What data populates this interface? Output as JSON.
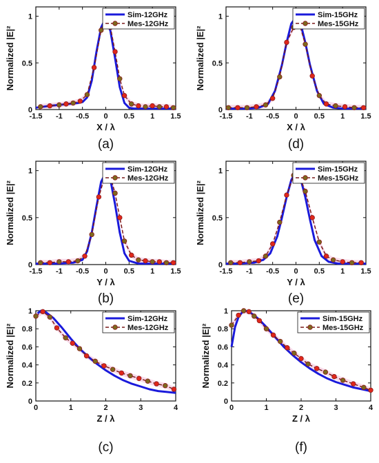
{
  "chart_data": [
    {
      "id": "a",
      "type": "line",
      "caption": "(a)",
      "xlabel": "X / λ",
      "ylabel": "Normalized |E|²",
      "xlim": [
        -1.5,
        1.5
      ],
      "ylim": [
        0,
        1.1
      ],
      "xticks": [
        "-1.5",
        "-1",
        "-0.5",
        "0",
        "0.5",
        "1",
        "1.5"
      ],
      "yticks": [
        "0",
        "0.5",
        "1"
      ],
      "legend_position": "top-right",
      "series": [
        {
          "name": "Sim-12GHz",
          "style": "solid",
          "color": "#1a1adb",
          "x": [
            -1.5,
            -1.2,
            -1.0,
            -0.8,
            -0.6,
            -0.5,
            -0.4,
            -0.3,
            -0.2,
            -0.1,
            0.0,
            0.1,
            0.2,
            0.3,
            0.4,
            0.5,
            0.6,
            0.8,
            1.0,
            1.2,
            1.5
          ],
          "y": [
            0.02,
            0.04,
            0.05,
            0.06,
            0.07,
            0.08,
            0.13,
            0.31,
            0.62,
            0.88,
            0.98,
            0.84,
            0.55,
            0.24,
            0.07,
            0.02,
            0.01,
            0.01,
            0.01,
            0.01,
            0.01
          ]
        },
        {
          "name": "Mes-12GHz",
          "style": "dashed",
          "color": "#7a1a1a",
          "marker": "circle",
          "x": [
            -1.4,
            -1.2,
            -1.0,
            -0.85,
            -0.7,
            -0.55,
            -0.4,
            -0.25,
            -0.1,
            0.0,
            0.1,
            0.2,
            0.3,
            0.4,
            0.55,
            0.7,
            0.85,
            1.0,
            1.15,
            1.3,
            1.45
          ],
          "y": [
            0.03,
            0.04,
            0.05,
            0.06,
            0.07,
            0.09,
            0.16,
            0.45,
            0.85,
            0.98,
            0.88,
            0.62,
            0.33,
            0.15,
            0.06,
            0.04,
            0.03,
            0.04,
            0.03,
            0.03,
            0.02
          ]
        }
      ]
    },
    {
      "id": "b",
      "type": "line",
      "caption": "(b)",
      "xlabel": "Y / λ",
      "ylabel": "Normalized |E|²",
      "xlim": [
        -1.5,
        1.5
      ],
      "ylim": [
        0,
        1.1
      ],
      "xticks": [
        "-1.5",
        "-1",
        "-0.5",
        "0",
        "0.5",
        "1",
        "1.5"
      ],
      "yticks": [
        "0",
        "0.5",
        "1"
      ],
      "legend_position": "top-right",
      "series": [
        {
          "name": "Sim-12GHz",
          "style": "solid",
          "color": "#1a1adb",
          "x": [
            -1.5,
            -1.0,
            -0.7,
            -0.5,
            -0.4,
            -0.3,
            -0.2,
            -0.1,
            0.0,
            0.1,
            0.2,
            0.3,
            0.4,
            0.5,
            0.7,
            1.0,
            1.5
          ],
          "y": [
            0.01,
            0.01,
            0.02,
            0.05,
            0.14,
            0.34,
            0.62,
            0.88,
            0.98,
            0.9,
            0.64,
            0.34,
            0.12,
            0.04,
            0.01,
            0.01,
            0.01
          ]
        },
        {
          "name": "Mes-12GHz",
          "style": "dashed",
          "color": "#7a1a1a",
          "marker": "circle",
          "x": [
            -1.4,
            -1.2,
            -1.0,
            -0.8,
            -0.6,
            -0.45,
            -0.3,
            -0.15,
            0.0,
            0.1,
            0.2,
            0.3,
            0.4,
            0.55,
            0.7,
            0.85,
            1.0,
            1.15,
            1.3,
            1.45
          ],
          "y": [
            0.02,
            0.02,
            0.03,
            0.03,
            0.04,
            0.09,
            0.32,
            0.72,
            0.98,
            0.93,
            0.76,
            0.5,
            0.25,
            0.1,
            0.05,
            0.04,
            0.03,
            0.03,
            0.02,
            0.02
          ]
        }
      ]
    },
    {
      "id": "c",
      "type": "line",
      "caption": "(c)",
      "xlabel": "Z / λ",
      "ylabel": "Normalized |E|²",
      "xlim": [
        0,
        4
      ],
      "ylim": [
        0,
        1
      ],
      "xticks": [
        "0",
        "1",
        "2",
        "3",
        "4"
      ],
      "yticks": [
        "0",
        "0.2",
        "0.4",
        "0.6",
        "0.8",
        "1"
      ],
      "legend_position": "top-right",
      "series": [
        {
          "name": "Sim-12GHz",
          "style": "solid",
          "color": "#1a1adb",
          "x": [
            0.05,
            0.15,
            0.3,
            0.5,
            0.75,
            1.0,
            1.25,
            1.5,
            1.75,
            2.0,
            2.25,
            2.5,
            2.75,
            3.0,
            3.25,
            3.5,
            3.75,
            4.0
          ],
          "y": [
            0.97,
            1.0,
            0.98,
            0.92,
            0.81,
            0.69,
            0.58,
            0.49,
            0.41,
            0.34,
            0.28,
            0.23,
            0.19,
            0.16,
            0.13,
            0.11,
            0.1,
            0.09
          ]
        },
        {
          "name": "Mes-12GHz",
          "style": "dashed",
          "color": "#7a1a1a",
          "marker": "circle",
          "x": [
            0.0,
            0.2,
            0.4,
            0.6,
            0.85,
            1.05,
            1.25,
            1.45,
            1.7,
            1.95,
            2.2,
            2.45,
            2.7,
            2.95,
            3.2,
            3.45,
            3.7,
            3.95
          ],
          "y": [
            0.94,
            0.99,
            0.93,
            0.81,
            0.7,
            0.64,
            0.58,
            0.5,
            0.44,
            0.39,
            0.35,
            0.31,
            0.28,
            0.25,
            0.22,
            0.19,
            0.17,
            0.13
          ]
        }
      ]
    },
    {
      "id": "d",
      "type": "line",
      "caption": "(d)",
      "xlabel": "X / λ",
      "ylabel": "Normalized |E|²",
      "xlim": [
        -1.5,
        1.5
      ],
      "ylim": [
        0,
        1.1
      ],
      "xticks": [
        "-1.5",
        "-1",
        "-0.5",
        "0",
        "0.5",
        "1",
        "1.5"
      ],
      "yticks": [
        "0",
        "0.5",
        "1"
      ],
      "legend_position": "top-right",
      "series": [
        {
          "name": "Sim-15GHz",
          "style": "solid",
          "color": "#1a1adb",
          "x": [
            -1.5,
            -1.2,
            -1.0,
            -0.8,
            -0.6,
            -0.45,
            -0.3,
            -0.2,
            -0.1,
            0.0,
            0.1,
            0.2,
            0.3,
            0.45,
            0.6,
            0.8,
            1.0,
            1.2,
            1.5
          ],
          "y": [
            0.01,
            0.01,
            0.01,
            0.02,
            0.06,
            0.2,
            0.48,
            0.72,
            0.92,
            0.99,
            0.92,
            0.72,
            0.48,
            0.2,
            0.06,
            0.02,
            0.01,
            0.01,
            0.01
          ]
        },
        {
          "name": "Mes-15GHz",
          "style": "dashed",
          "color": "#7a1a1a",
          "marker": "circle",
          "x": [
            -1.45,
            -1.25,
            -1.05,
            -0.85,
            -0.65,
            -0.5,
            -0.35,
            -0.2,
            -0.05,
            0.05,
            0.2,
            0.35,
            0.5,
            0.65,
            0.85,
            1.05,
            1.25,
            1.45
          ],
          "y": [
            0.02,
            0.02,
            0.02,
            0.03,
            0.05,
            0.12,
            0.35,
            0.72,
            0.88,
            0.96,
            0.7,
            0.36,
            0.15,
            0.06,
            0.04,
            0.03,
            0.02,
            0.02
          ]
        }
      ]
    },
    {
      "id": "e",
      "type": "line",
      "caption": "(e)",
      "xlabel": "Y / λ",
      "ylabel": "Normalized |E|²",
      "xlim": [
        -1.5,
        1.5
      ],
      "ylim": [
        0,
        1.1
      ],
      "xticks": [
        "-1.5",
        "-1",
        "-0.5",
        "0",
        "0.5",
        "1",
        "1.5"
      ],
      "yticks": [
        "0",
        "0.5",
        "1"
      ],
      "legend_position": "top-right",
      "series": [
        {
          "name": "Sim-15GHz",
          "style": "solid",
          "color": "#1a1adb",
          "x": [
            -1.5,
            -1.2,
            -0.9,
            -0.7,
            -0.55,
            -0.4,
            -0.3,
            -0.2,
            -0.1,
            0.0,
            0.1,
            0.2,
            0.3,
            0.4,
            0.55,
            0.7,
            0.9,
            1.2,
            1.5
          ],
          "y": [
            0.01,
            0.01,
            0.02,
            0.05,
            0.12,
            0.3,
            0.5,
            0.72,
            0.9,
            0.99,
            0.91,
            0.72,
            0.48,
            0.26,
            0.09,
            0.03,
            0.01,
            0.01,
            0.01
          ]
        },
        {
          "name": "Mes-15GHz",
          "style": "dashed",
          "color": "#7a1a1a",
          "marker": "circle",
          "x": [
            -1.4,
            -1.2,
            -1.0,
            -0.8,
            -0.65,
            -0.5,
            -0.35,
            -0.2,
            -0.05,
            0.05,
            0.2,
            0.35,
            0.5,
            0.65,
            0.8,
            1.0,
            1.2,
            1.4
          ],
          "y": [
            0.02,
            0.02,
            0.03,
            0.04,
            0.09,
            0.22,
            0.45,
            0.74,
            0.95,
            0.97,
            0.78,
            0.5,
            0.24,
            0.09,
            0.05,
            0.03,
            0.02,
            0.02
          ]
        }
      ]
    },
    {
      "id": "f",
      "type": "line",
      "caption": "(f)",
      "xlabel": "Z / λ",
      "ylabel": "Normalized |E|²",
      "xlim": [
        0,
        4
      ],
      "ylim": [
        0,
        1
      ],
      "xticks": [
        "0",
        "1",
        "2",
        "3",
        "4"
      ],
      "yticks": [
        "0",
        "0.2",
        "0.4",
        "0.6",
        "0.8",
        "1"
      ],
      "legend_position": "top-right",
      "series": [
        {
          "name": "Sim-15GHz",
          "style": "solid",
          "color": "#1a1adb",
          "x": [
            0.0,
            0.1,
            0.2,
            0.3,
            0.4,
            0.5,
            0.65,
            0.8,
            1.0,
            1.25,
            1.5,
            1.75,
            2.0,
            2.25,
            2.5,
            2.75,
            3.0,
            3.25,
            3.5,
            3.75,
            4.0
          ],
          "y": [
            0.6,
            0.82,
            0.93,
            0.98,
            1.0,
            0.99,
            0.95,
            0.9,
            0.82,
            0.71,
            0.6,
            0.51,
            0.43,
            0.36,
            0.3,
            0.25,
            0.21,
            0.18,
            0.15,
            0.13,
            0.11
          ]
        },
        {
          "name": "Mes-15GHz",
          "style": "dashed",
          "color": "#7a1a1a",
          "marker": "circle",
          "x": [
            0.0,
            0.2,
            0.35,
            0.5,
            0.65,
            0.8,
            1.0,
            1.2,
            1.4,
            1.6,
            1.8,
            2.0,
            2.2,
            2.45,
            2.7,
            2.95,
            3.2,
            3.5,
            3.8,
            4.0
          ],
          "y": [
            0.84,
            0.95,
            1.0,
            0.99,
            0.94,
            0.89,
            0.8,
            0.73,
            0.66,
            0.59,
            0.53,
            0.47,
            0.41,
            0.36,
            0.32,
            0.27,
            0.23,
            0.19,
            0.15,
            0.12
          ]
        }
      ]
    }
  ]
}
